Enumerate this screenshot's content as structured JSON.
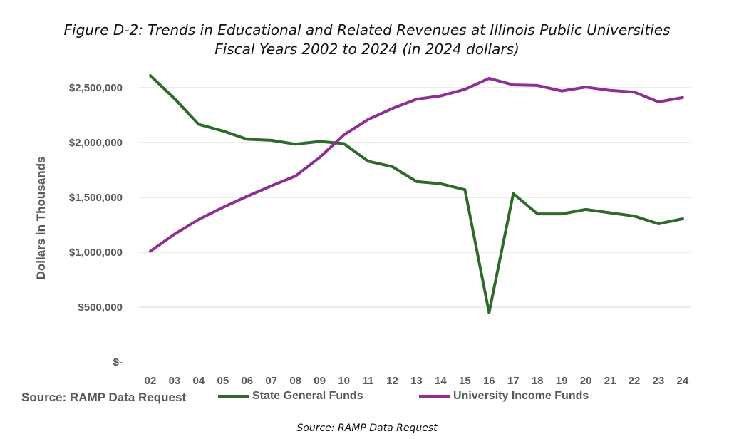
{
  "chart_data": {
    "type": "line",
    "title": "Figure D-2:  Trends in Educational and Related Revenues at Illinois Public Universities",
    "subtitle": "Fiscal Years 2002 to 2024 (in 2024 dollars)",
    "xlabel": "",
    "ylabel": "Dollars in Thousands",
    "categories": [
      "02",
      "03",
      "04",
      "05",
      "06",
      "07",
      "08",
      "09",
      "10",
      "11",
      "12",
      "13",
      "14",
      "15",
      "16",
      "17",
      "18",
      "19",
      "20",
      "21",
      "22",
      "23",
      "24"
    ],
    "y_ticks": [
      0,
      500000,
      1000000,
      1500000,
      2000000,
      2500000
    ],
    "y_tick_labels": [
      "$-",
      "$500,000",
      "$1,000,000",
      "$1,500,000",
      "$2,000,000",
      "$2,500,000"
    ],
    "ylim": [
      0,
      2600000
    ],
    "grid": true,
    "series": [
      {
        "name": "State General Funds",
        "color": "#2e6b2a",
        "values": [
          2610000,
          2400000,
          2165000,
          2105000,
          2030000,
          2020000,
          1985000,
          2010000,
          1990000,
          1830000,
          1780000,
          1645000,
          1625000,
          1570000,
          450000,
          1535000,
          1350000,
          1350000,
          1390000,
          1360000,
          1330000,
          1260000,
          1305000
        ]
      },
      {
        "name": "University Income Funds",
        "color": "#8e2f94",
        "values": [
          1010000,
          1165000,
          1300000,
          1410000,
          1510000,
          1605000,
          1695000,
          1865000,
          2070000,
          2210000,
          2310000,
          2395000,
          2425000,
          2485000,
          2585000,
          2525000,
          2520000,
          2470000,
          2505000,
          2475000,
          2460000,
          2370000,
          2410000
        ]
      }
    ],
    "legend": "bottom"
  },
  "legend_source": "Source: RAMP Data Request",
  "footer_source": "Source:  RAMP Data Request"
}
